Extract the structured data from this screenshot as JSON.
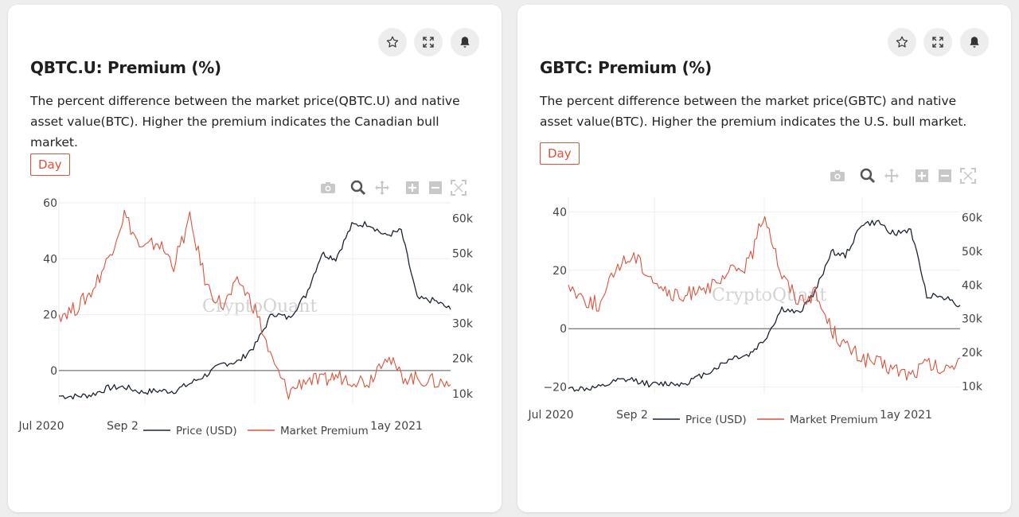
{
  "colors": {
    "price": "#1c2433",
    "premium": "#e0513a",
    "accent": "#e0513a"
  },
  "icons": {
    "star": "star-icon",
    "expand": "expand-icon",
    "bell": "bell-icon",
    "camera": "camera-icon",
    "zoom": "zoom-icon",
    "pan": "pan-icon",
    "zoom_in": "zoom-in-icon",
    "zoom_out": "zoom-out-icon",
    "autoscale": "autoscale-icon"
  },
  "cards": [
    {
      "title": "QBTC.U: Premium (%)",
      "description": "The percent difference between the market price(QBTC.U) and native asset value(BTC). Higher the premium indicates the Canadian bull market.",
      "period_label": "Day",
      "watermark": "CryptoQuant",
      "x_ticks": [
        "Jul 2020",
        "Sep 2",
        "1ay 2021"
      ],
      "y_left_ticks": [
        "60",
        "40",
        "20",
        "0"
      ],
      "y_right_ticks": [
        "60k",
        "50k",
        "40k",
        "30k",
        "20k",
        "10k"
      ],
      "legend": [
        "Price (USD)",
        "Market Premium"
      ]
    },
    {
      "title": "GBTC: Premium (%)",
      "description": "The percent difference between the market price(GBTC) and native asset value(BTC). Higher the premium indicates the U.S. bull market.",
      "period_label": "Day",
      "watermark": "CryptoQuant",
      "x_ticks": [
        "Jul 2020",
        "Sep 2",
        "1ay 2021"
      ],
      "y_left_ticks": [
        "40",
        "20",
        "0",
        "−20"
      ],
      "y_right_ticks": [
        "60k",
        "50k",
        "40k",
        "30k",
        "20k",
        "10k"
      ],
      "legend": [
        "Price (USD)",
        "Market Premium"
      ]
    }
  ],
  "chart_data": [
    {
      "type": "line",
      "title": "QBTC.U: Premium (%)",
      "xlabel": "",
      "ylabel": "",
      "x": [
        "2020-06-20",
        "2020-07-05",
        "2020-07-20",
        "2020-08-05",
        "2020-08-20",
        "2020-09-05",
        "2020-09-20",
        "2020-10-05",
        "2020-10-20",
        "2020-11-05",
        "2020-11-20",
        "2020-12-05",
        "2020-12-20",
        "2021-01-05",
        "2021-01-20",
        "2021-02-05",
        "2021-02-20",
        "2021-03-05",
        "2021-03-20",
        "2021-04-05",
        "2021-04-20",
        "2021-05-05",
        "2021-05-20",
        "2021-06-05",
        "2021-06-20"
      ],
      "series": [
        {
          "name": "Price (USD)",
          "axis": "right",
          "values": [
            9300,
            9200,
            9600,
            11600,
            11900,
            10400,
            10800,
            10700,
            12800,
            15500,
            18500,
            19200,
            23800,
            33000,
            31500,
            38000,
            50000,
            48500,
            58000,
            58500,
            55000,
            56500,
            37000,
            36500,
            34000
          ]
        },
        {
          "name": "Market Premium",
          "axis": "left",
          "values": [
            20,
            22,
            28,
            40,
            56,
            43,
            46,
            38,
            54,
            30,
            23,
            32,
            22,
            3,
            -8,
            -3,
            -4,
            -2,
            -3,
            -4,
            6,
            -2,
            -3,
            -4,
            -5
          ]
        }
      ],
      "y_left_range": [
        -12,
        62
      ],
      "y_right_range": [
        7000,
        66000
      ],
      "zero_line": true,
      "grid": true,
      "legend_position": "bottom"
    },
    {
      "type": "line",
      "title": "GBTC: Premium (%)",
      "xlabel": "",
      "ylabel": "",
      "x": [
        "2020-06-20",
        "2020-07-05",
        "2020-07-20",
        "2020-08-05",
        "2020-08-20",
        "2020-09-05",
        "2020-09-20",
        "2020-10-05",
        "2020-10-20",
        "2020-11-05",
        "2020-11-20",
        "2020-12-05",
        "2020-12-20",
        "2021-01-05",
        "2021-01-20",
        "2021-02-05",
        "2021-02-20",
        "2021-03-05",
        "2021-03-20",
        "2021-04-05",
        "2021-04-20",
        "2021-05-05",
        "2021-05-20",
        "2021-06-05",
        "2021-06-20"
      ],
      "series": [
        {
          "name": "Price (USD)",
          "axis": "right",
          "values": [
            9300,
            9200,
            9600,
            11600,
            11900,
            10400,
            10800,
            10700,
            12800,
            15500,
            18500,
            19200,
            23800,
            33000,
            31500,
            38000,
            50000,
            48500,
            58000,
            58500,
            55000,
            56500,
            37000,
            36500,
            34000
          ]
        },
        {
          "name": "Market Premium",
          "axis": "left",
          "values": [
            15,
            10,
            8,
            22,
            25,
            18,
            12,
            10,
            15,
            14,
            20,
            22,
            40,
            18,
            10,
            12,
            0,
            -6,
            -10,
            -12,
            -14,
            -16,
            -12,
            -15,
            -10
          ]
        }
      ],
      "y_left_range": [
        -22,
        45
      ],
      "y_right_range": [
        8000,
        66000
      ],
      "zero_line": true,
      "grid": true,
      "legend_position": "bottom"
    }
  ]
}
